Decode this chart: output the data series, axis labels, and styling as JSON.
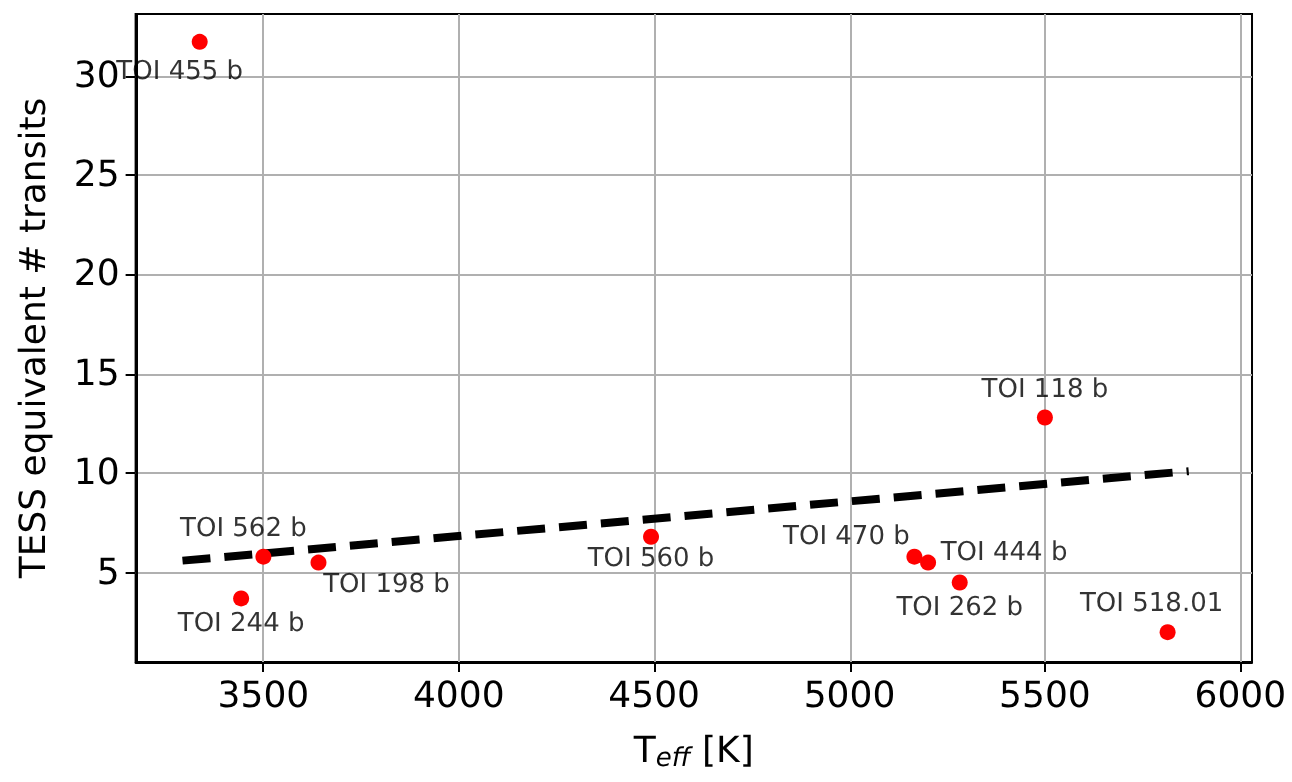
{
  "chart_data": {
    "type": "scatter",
    "xlabel": "T$_{eff}$ [K]",
    "ylabel": "TESS equivalent # transits",
    "xlim": [
      3173,
      6030
    ],
    "ylim": [
      0.5,
      33.1
    ],
    "xticks": [
      3500,
      4000,
      4500,
      5000,
      5500,
      6000
    ],
    "yticks": [
      5,
      10,
      15,
      20,
      25,
      30
    ],
    "grid": true,
    "marker": "circle",
    "series": [
      {
        "color": "#ff0000",
        "x": [
          3337,
          3500,
          3641,
          3443,
          4492,
          5500,
          5166,
          5201,
          5282,
          5814
        ],
        "values": [
          31.7,
          5.8,
          5.5,
          3.7,
          6.8,
          12.8,
          5.8,
          5.5,
          4.5,
          2.0
        ]
      },
      {
        "type": "line",
        "color": "#000000",
        "line_style": "dashed",
        "marker": "none",
        "x": [
          3293,
          5868
        ],
        "values": [
          5.6,
          10.1
        ]
      }
    ],
    "annotations": [
      {
        "text": "TOI 455 b",
        "x": 3337,
        "y": 31.7
      },
      {
        "text": "TOI 562 b",
        "x": 3500,
        "y": 5.8
      },
      {
        "text": "TOI 198 b",
        "x": 3641,
        "y": 5.5
      },
      {
        "text": "TOI 244 b",
        "x": 3443,
        "y": 3.7
      },
      {
        "text": "TOI 560 b",
        "x": 4492,
        "y": 6.8
      },
      {
        "text": "TOI 118 b",
        "x": 5500,
        "y": 12.8
      },
      {
        "text": "TOI 470 b",
        "x": 5166,
        "y": 5.8
      },
      {
        "text": "TOI 444 b",
        "x": 5201,
        "y": 5.5
      },
      {
        "text": "TOI 262 b",
        "x": 5282,
        "y": 4.5
      },
      {
        "text": "TOI 518.01",
        "x": 5814,
        "y": 2.0
      }
    ]
  }
}
